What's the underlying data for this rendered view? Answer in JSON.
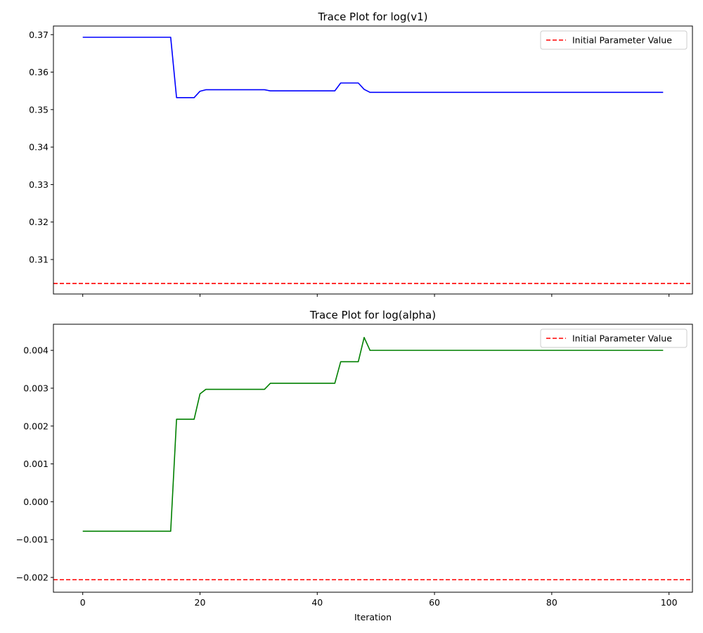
{
  "chart_data": [
    {
      "type": "line",
      "title": "Trace Plot for log(v1)",
      "xlabel": "",
      "ylabel": "",
      "xlim": [
        -5,
        104
      ],
      "ylim": [
        0.3008,
        0.3723
      ],
      "xticks": [
        0,
        20,
        40,
        60,
        80,
        100
      ],
      "xtick_labels": [
        "",
        "",
        "",
        "",
        "",
        ""
      ],
      "yticks": [
        0.31,
        0.32,
        0.33,
        0.34,
        0.35,
        0.36,
        0.37
      ],
      "ytick_labels": [
        "0.31",
        "0.32",
        "0.33",
        "0.34",
        "0.35",
        "0.36",
        "0.37"
      ],
      "grid": false,
      "legend_position": "top-right",
      "series": [
        {
          "color": "#0000ff",
          "points": [
            [
              0,
              0.3693
            ],
            [
              15,
              0.3693
            ],
            [
              16,
              0.3532
            ],
            [
              19,
              0.3532
            ],
            [
              20,
              0.3549
            ],
            [
              21,
              0.3553
            ],
            [
              31,
              0.3553
            ],
            [
              32,
              0.355
            ],
            [
              43,
              0.355
            ],
            [
              44,
              0.3571
            ],
            [
              47,
              0.3571
            ],
            [
              48,
              0.3554
            ],
            [
              49,
              0.3546
            ],
            [
              99,
              0.3546
            ]
          ]
        }
      ],
      "reference_lines": [
        {
          "name": "Initial Parameter Value",
          "y": 0.3036,
          "color": "#ff0000",
          "style": "dashed"
        }
      ]
    },
    {
      "type": "line",
      "title": "Trace Plot for log(alpha)",
      "xlabel": "Iteration",
      "ylabel": "",
      "xlim": [
        -5,
        104
      ],
      "ylim": [
        -0.00239,
        0.00469
      ],
      "xticks": [
        0,
        20,
        40,
        60,
        80,
        100
      ],
      "xtick_labels": [
        "0",
        "20",
        "40",
        "60",
        "80",
        "100"
      ],
      "yticks": [
        -0.002,
        -0.001,
        0.0,
        0.001,
        0.002,
        0.003,
        0.004
      ],
      "ytick_labels": [
        "−0.002",
        "−0.001",
        "0.000",
        "0.001",
        "0.002",
        "0.003",
        "0.004"
      ],
      "grid": false,
      "legend_position": "top-right",
      "series": [
        {
          "color": "#008000",
          "points": [
            [
              0,
              -0.00078
            ],
            [
              15,
              -0.00078
            ],
            [
              16,
              0.00218
            ],
            [
              19,
              0.00218
            ],
            [
              20,
              0.00285
            ],
            [
              21,
              0.00297
            ],
            [
              31,
              0.00297
            ],
            [
              32,
              0.00313
            ],
            [
              43,
              0.00313
            ],
            [
              44,
              0.0037
            ],
            [
              47,
              0.0037
            ],
            [
              48,
              0.00434
            ],
            [
              49,
              0.004
            ],
            [
              99,
              0.004
            ]
          ]
        }
      ],
      "reference_lines": [
        {
          "name": "Initial Parameter Value",
          "y": -0.00206,
          "color": "#ff0000",
          "style": "dashed"
        }
      ]
    }
  ]
}
